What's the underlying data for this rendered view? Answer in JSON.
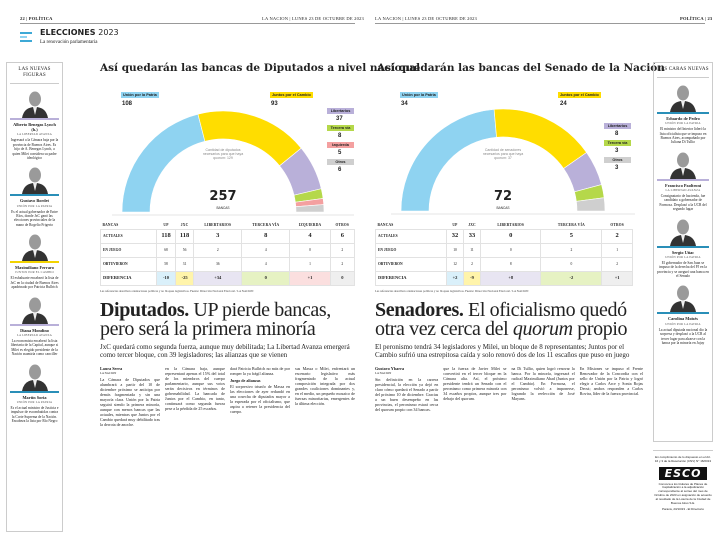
{
  "left_page": {
    "folio_left": "22 | POLÍTICA",
    "folio_right": "LA NACION | LUNES 23 DE OCTUBRE DE 2023",
    "section_title": "ELECCIONES",
    "section_year": "2023",
    "section_subtitle": "La renovación parlamentaria",
    "sidebar": {
      "heading": "LAS NUEVAS FIGURAS",
      "figures": [
        {
          "name": "Alberto Benegas Lynch (h.)",
          "party": "LA LIBERTAD AVANZA",
          "color": "#b9b0d9",
          "desc": "Ingresará a la Cámara baja por la provincia de Buenos Aires. Es hijo de A. Benegas Lynch, a quien Milei considera su padre ideológico"
        },
        {
          "name": "Gustavo Bordet",
          "party": "UNIÓN POR LA PATRIA",
          "color": "#2a8fb8",
          "desc": "Es el actual gobernador de Entre Ríos, donde JxC ganó las elecciones provinciales de la mano de Rogelio Frigerio"
        },
        {
          "name": "Maximiliano Ferraro",
          "party": "JUNTOS POR EL CAMBIO",
          "color": "#f2d300",
          "desc": "El exbaluarte encabezó la lista de JxC en la ciudad de Buenos Aires apadrinado por Patricia Bullrich"
        },
        {
          "name": "Diana Mondino",
          "party": "LA LIBERTAD AVANZA",
          "color": "#b9b0d9",
          "desc": "La economista encabezó la lista libertaria de la Capital, aunque si Milei es elegido presidente de la Nación asumiría como canciller"
        },
        {
          "name": "Martín Soria",
          "party": "UNIÓN POR LA PATRIA",
          "color": "#2a8fb8",
          "desc": "Es el actual ministro de Justicia e impulsor de escombatidas contra la Corte Suprema de la Nación. Encabeza la lista por Río Negro"
        }
      ]
    },
    "chart_title": "Así quedarán las bancas de Diputados a nivel nacional",
    "total": "257",
    "total_label": "BANCAS",
    "quorum_note": "Cantidad de diputados necesarios para que haya quorum: 129",
    "table": {
      "headers": [
        "BANCAS",
        "UP",
        "JXC",
        "LIBERTARIOS",
        "TERCERA VÍA",
        "IZQUIERDA",
        "OTROS"
      ],
      "rows": [
        {
          "label": "ACTUALES",
          "values": [
            "118",
            "118",
            "3",
            "8",
            "4",
            "6"
          ]
        },
        {
          "label": "EN JUEGO",
          "values": [
            "68",
            "56",
            "2",
            "4",
            "0",
            "2"
          ]
        },
        {
          "label": "OBTUVIERON",
          "values": [
            "58",
            "31",
            "36",
            "4",
            "1",
            "2"
          ]
        },
        {
          "label": "DIFERENCIA",
          "values": [
            "-10",
            "-25",
            "+34",
            "0",
            "+1",
            "0"
          ]
        }
      ]
    },
    "source_note": "Las referencias describen orientaciones políticas y no bloques legislativos. Fuente: Dirección Nacional Electoral / LA NACION",
    "headline_bold": "Diputados.",
    "headline_rest": " UP pierde bancas, pero será la primera minoría",
    "deck": "JxC quedará como segunda fuerza, aunque muy debilitada; La Libertad Avanza emergerá como tercer bloque, con 39 legisladores; las alianzas que se vienen",
    "byline": "Laura Serra",
    "byline_sub": "LA NACION",
    "body": [
      "La Cámara de Diputados que alumbrará a partir del 10 de diciembre próximo se anticipa por demás fragmentada y sin una mayoría clara. Unión por la Patria seguirá siendo la primera minoría, aunque con menos bancas que las actuales, mientras que Juntos por el Cambio quedará muy debilitado tras la derrota de anoche.",
      "en la Cámara baja, aunque representará apenas el 15% del total de los miembros del cuerpo parlamentario, aunque sus votos serán decisivos en términos de gobernabilidad. La bancada de Juntos por el Cambio, en tanto, continuará como segunda fuerza pese a la pérdida de 25 escaños.",
      "dará Patricia Bullrich no más de por romper la ya frágil alianza.",
      "Juego de alianzas",
      "El sorpresivo triunfo de Massa en las elecciones de ayer redundó en una cosecha de diputados mayor a la esperada por el oficialismo, que aspira a retener la presidencia del cuerpo.",
      "sus Massa o Milei, enfrentará un escenario legislativo más fragmentado de la actual composición integrada por dos grandes coaliciones dominantes y, en el medio, un pequeño mosaico de fuerzas minoritarias, emergentes de la última elección."
    ]
  },
  "right_page": {
    "folio_left": "LA NACION | LUNES 23 DE OCTUBRE DE 2023",
    "folio_right": "POLÍTICA | 23",
    "chart_title": "Así quedarán las bancas del Senado de la Nación",
    "total": "72",
    "total_label": "BANCAS",
    "quorum_note": "Cantidad de senadores necesarios para que haya quorum: 37",
    "table": {
      "headers": [
        "BANCAS",
        "UP",
        "JXC",
        "LIBERTARIOS",
        "TERCERA VÍA",
        "OTROS"
      ],
      "rows": [
        {
          "label": "ACTUALES",
          "values": [
            "32",
            "33",
            "0",
            "5",
            "2"
          ]
        },
        {
          "label": "EN JUEGO",
          "values": [
            "10",
            "11",
            "0",
            "2",
            "1"
          ]
        },
        {
          "label": "OBTUVIERON",
          "values": [
            "12",
            "2",
            "8",
            "0",
            "2"
          ]
        },
        {
          "label": "DIFERENCIA",
          "values": [
            "+2",
            "-9",
            "+8",
            "-2",
            "+1"
          ]
        }
      ]
    },
    "source_note": "Las referencias describen orientaciones políticas y no bloques legislativos. Fuente: Dirección Nacional Electoral / LA NACION",
    "headline_bold": "Senadores.",
    "headline_rest_1": " El oficialismo quedó otra vez cerca del ",
    "headline_italic": "quorum",
    "headline_rest_2": " propio",
    "deck": "El peronismo tendrá 34 legisladores y Milei, un bloque de 8 representantes; Juntos por el Cambio sufrió una estrepitosa caída y solo renovó dos de los 11 escaños que puso en juego",
    "byline": "Gustavo Ybarra",
    "byline_sub": "LA NACION",
    "body": [
      "Sin definición en la carrera presidencial, la elección ya dejó en claro cómo quedará el Senado a partir del próximo 10 de diciembre. Gracias a un buen desempeño en las provincias, el peronismo estará cerca del quorum propio con 34 bancas.",
      "que la fuerza de Javier Milei se convertirá en el tercer bloque en la Cámara alta. Así, el próximo presidente tendrá un Senado con el peronismo como primera minoría con 34 escaños propios, aunque tres por debajo del quorum.",
      "na Di Tullio, quien logró renovar la banca. Por la minoría, ingresará el radical Maximiliano Abad (Juntos por el Cambio). En Formosa, el peronismo volvió a imponerse, logrando la reelección de José Mayans.",
      "En Misiones se impuso el Frente Renovador de la Concordia con el sello de Unión por la Patria y logró elegir a Carlos Arce y Sonia Rojas Decut; ambos responden a Carlos Rovira, líder de la fuerza provincial."
    ],
    "sidebar": {
      "heading": "LAS CARAS NUEVAS",
      "figures": [
        {
          "name": "Eduardo de Pedro",
          "party": "UNIÓN POR LA PATRIA",
          "color": "#2a8fb8",
          "desc": "El ministro del Interior lideró la lista oficialista que se impuso en Buenos Aires, acompañado por Juliana Di Tullio"
        },
        {
          "name": "Francisco Paoltroni",
          "party": "LA LIBERTAD AVANZA",
          "color": "#b9b0d9",
          "desc": "Consignatario de hacienda, fue candidato a gobernador de Formosa. Desplazó a la UCR del segundo lugar"
        },
        {
          "name": "Sergio Uñac",
          "party": "UNIÓN POR LA PATRIA",
          "color": "#2a8fb8",
          "desc": "El gobernador de San Juan se impuso de la derecha del PJ en la provincia y se aseguró una banca en el Senado"
        },
        {
          "name": "Carolina Moisés",
          "party": "UNIÓN POR LA PATRIA",
          "color": "#2a8fb8",
          "desc": "La actual diputada nacional dio la sorpresa y desplazó a la UCR al tercer lugar para alzarse con la banca por la minoría en Jujuy"
        }
      ]
    },
    "ad": {
      "top": "En cumplimiento de lo dispuesto en el Art. 16 y 3 de la Resolución (CNV) N° 18/2013",
      "brand": "ESCO",
      "body": "Convoca a los titulares de Planes de Capitalización a la adjudicación correspondiente al sorteo del mes de Octubre de 2023 en asignación de acuerdo al resultado de la Lotería de la Ciudad de Buenos Aires S.E.",
      "footer": "Paraná, 23/10/23 - El Directorio"
    }
  },
  "colors": {
    "up": "#8fd3f1",
    "jxc": "#ffdd00",
    "libertarios": "#b9b0d9",
    "tercera": "#b5d84a",
    "izquierda": "#f4a0a0",
    "otros": "#cfcfcf"
  },
  "chart_data": [
    {
      "type": "pie",
      "subtype": "half-donut",
      "title": "Así quedarán las bancas de Diputados a nivel nacional",
      "categories": [
        "Unión por la Patria",
        "Juntos por el Cambio",
        "Libertarios",
        "Tercera vía",
        "Izquierda",
        "Otros"
      ],
      "values": [
        108,
        93,
        37,
        8,
        5,
        6
      ],
      "total": 257
    },
    {
      "type": "pie",
      "subtype": "half-donut",
      "title": "Así quedarán las bancas del Senado de la Nación",
      "categories": [
        "Unión por la Patria",
        "Juntos por el Cambio",
        "Libertarios",
        "Tercera vía",
        "Otros"
      ],
      "values": [
        34,
        24,
        8,
        3,
        3
      ],
      "total": 72
    }
  ]
}
